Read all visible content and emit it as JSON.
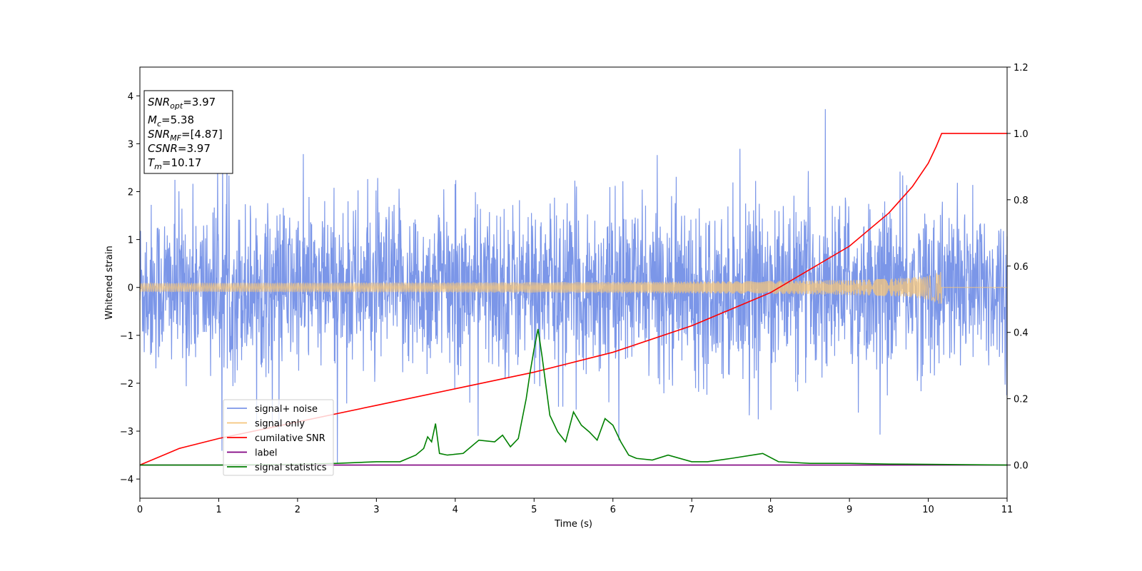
{
  "chart_data": {
    "type": "line",
    "title": "",
    "xlabel": "Time (s)",
    "ylabel": "Whitened strain",
    "xlim": [
      0,
      11
    ],
    "ylim": [
      -4.4,
      4.6
    ],
    "y2lim": [
      -0.1,
      1.2
    ],
    "xticks": [
      "0",
      "1",
      "2",
      "3",
      "4",
      "5",
      "6",
      "7",
      "8",
      "9",
      "10",
      "11"
    ],
    "yticks": [
      "−4",
      "−3",
      "−2",
      "−1",
      "0",
      "1",
      "2",
      "3",
      "4"
    ],
    "y2ticks": [
      "0.0",
      "0.2",
      "0.4",
      "0.6",
      "0.8",
      "1.0",
      "1.2"
    ],
    "grid": false,
    "legend_position": "lower-left",
    "annotation": {
      "snr_opt": {
        "base": "SNR",
        "sub": "opt",
        "value": "=3.97"
      },
      "mc": {
        "base": "M",
        "sub": "c",
        "value": "=5.38"
      },
      "snr_mf": {
        "base": "SNR",
        "sub": "MF",
        "value": "=[4.87]"
      },
      "csnr": {
        "base": "CSNR",
        "sub": "",
        "value": "=3.97"
      },
      "tm": {
        "base": "T",
        "sub": "m",
        "value": "=10.17"
      }
    },
    "series": [
      {
        "name": "signal+ noise",
        "color": "#7b96e8",
        "axis": "left",
        "kind": "noise",
        "std": 1.0,
        "xmin": 0,
        "xmax": 11
      },
      {
        "name": "signal only",
        "color": "#f5c57b",
        "axis": "left",
        "kind": "chirp",
        "peak_amplitude": 0.4,
        "merger_time": 10.17
      },
      {
        "name": "cumilative SNR",
        "color": "#ff0000",
        "axis": "right",
        "kind": "line",
        "x": [
          0,
          0.5,
          1,
          2,
          3,
          4,
          5,
          6,
          7,
          8,
          8.5,
          9,
          9.5,
          9.8,
          10,
          10.1,
          10.17,
          11
        ],
        "y": [
          0.0,
          0.05,
          0.08,
          0.13,
          0.18,
          0.23,
          0.28,
          0.34,
          0.42,
          0.52,
          0.59,
          0.66,
          0.76,
          0.84,
          0.91,
          0.96,
          1.0,
          1.0
        ]
      },
      {
        "name": "label",
        "color": "#800080",
        "axis": "right",
        "kind": "line",
        "x": [
          0,
          11
        ],
        "y": [
          0,
          0
        ]
      },
      {
        "name": "signal statistics",
        "color": "#008000",
        "axis": "right",
        "kind": "line",
        "x": [
          0,
          1,
          2,
          2.5,
          3,
          3.3,
          3.5,
          3.6,
          3.65,
          3.7,
          3.75,
          3.8,
          3.9,
          4.1,
          4.3,
          4.5,
          4.6,
          4.7,
          4.8,
          4.9,
          4.95,
          5.0,
          5.05,
          5.1,
          5.2,
          5.3,
          5.4,
          5.5,
          5.6,
          5.7,
          5.8,
          5.9,
          6.0,
          6.1,
          6.2,
          6.3,
          6.5,
          6.7,
          7.0,
          7.2,
          7.5,
          7.9,
          8.1,
          8.5,
          9.0,
          9.5,
          10.0,
          11.0
        ],
        "y": [
          0.0,
          0.0,
          0.002,
          0.005,
          0.01,
          0.01,
          0.03,
          0.05,
          0.085,
          0.07,
          0.125,
          0.035,
          0.03,
          0.035,
          0.075,
          0.07,
          0.09,
          0.055,
          0.08,
          0.2,
          0.28,
          0.35,
          0.41,
          0.33,
          0.15,
          0.1,
          0.07,
          0.16,
          0.12,
          0.1,
          0.075,
          0.14,
          0.12,
          0.07,
          0.03,
          0.02,
          0.015,
          0.03,
          0.01,
          0.01,
          0.02,
          0.035,
          0.01,
          0.005,
          0.005,
          0.003,
          0.002,
          0.0
        ]
      }
    ]
  }
}
